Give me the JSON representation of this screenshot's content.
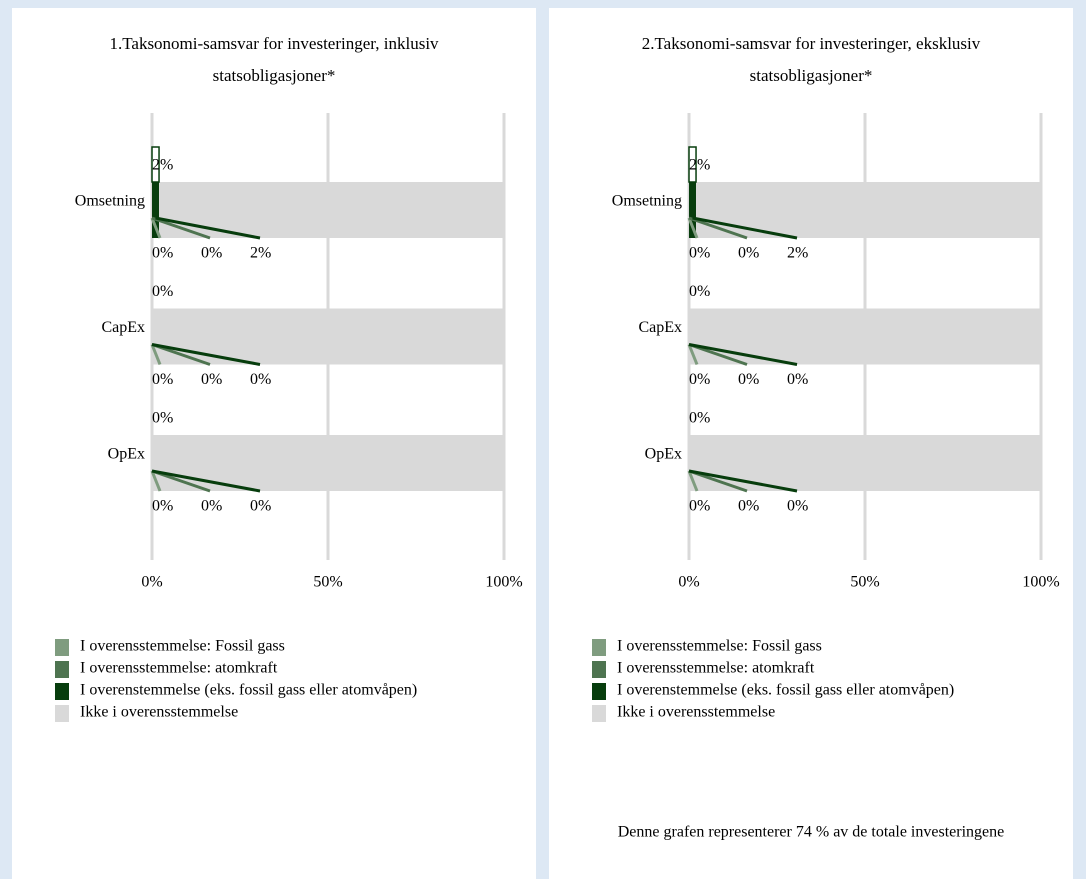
{
  "chart_data": [
    {
      "type": "bar",
      "orientation": "horizontal",
      "stacked": true,
      "title": "1.Taksonomi-samsvar for investeringer, inklusiv statsobligasjoner*",
      "categories": [
        "Omsetning",
        "CapEx",
        "OpEx"
      ],
      "series": [
        {
          "name": "I overensstemmelse: Fossil gass",
          "color": "#7f9c7f",
          "values": [
            0,
            0,
            0
          ],
          "value_labels": [
            "0%",
            "0%",
            "0%"
          ]
        },
        {
          "name": "I overensstemmelse: atomkraft",
          "color": "#4e7450",
          "values": [
            0,
            0,
            0
          ],
          "value_labels": [
            "0%",
            "0%",
            "0%"
          ]
        },
        {
          "name": "I overenstemmelse (eks. fossil gass eller atomvåpen)",
          "color": "#073d0d",
          "values": [
            2,
            0,
            0
          ],
          "value_labels": [
            "2%",
            "0%",
            "0%"
          ]
        },
        {
          "name": "Ikke i overensstemmelse",
          "color": "#d9d9d9",
          "values": [
            98,
            100,
            100
          ]
        }
      ],
      "totals": {
        "values": [
          2,
          0,
          0
        ],
        "value_labels": [
          "2%",
          "0%",
          "0%"
        ]
      },
      "xlim": [
        0,
        100
      ],
      "xticks": [
        {
          "value": 0,
          "label": "0%"
        },
        {
          "value": 50,
          "label": "50%"
        },
        {
          "value": 100,
          "label": "100%"
        }
      ],
      "grid": true
    },
    {
      "type": "bar",
      "orientation": "horizontal",
      "stacked": true,
      "title": "2.Taksonomi-samsvar for investeringer, eksklusiv statsobligasjoner*",
      "categories": [
        "Omsetning",
        "CapEx",
        "OpEx"
      ],
      "series": [
        {
          "name": "I overensstemmelse: Fossil gass",
          "color": "#7f9c7f",
          "values": [
            0,
            0,
            0
          ],
          "value_labels": [
            "0%",
            "0%",
            "0%"
          ]
        },
        {
          "name": "I overensstemmelse: atomkraft",
          "color": "#4e7450",
          "values": [
            0,
            0,
            0
          ],
          "value_labels": [
            "0%",
            "0%",
            "0%"
          ]
        },
        {
          "name": "I overenstemmelse (eks. fossil gass eller atomvåpen)",
          "color": "#073d0d",
          "values": [
            2,
            0,
            0
          ],
          "value_labels": [
            "2%",
            "0%",
            "0%"
          ]
        },
        {
          "name": "Ikke i overensstemmelse",
          "color": "#d9d9d9",
          "values": [
            98,
            100,
            100
          ]
        }
      ],
      "totals": {
        "values": [
          2,
          0,
          0
        ],
        "value_labels": [
          "2%",
          "0%",
          "0%"
        ]
      },
      "xlim": [
        0,
        100
      ],
      "xticks": [
        {
          "value": 0,
          "label": "0%"
        },
        {
          "value": 50,
          "label": "50%"
        },
        {
          "value": 100,
          "label": "100%"
        }
      ],
      "grid": true
    }
  ],
  "footnote": "Denne grafen representerer 74 % av de totale investeringene"
}
